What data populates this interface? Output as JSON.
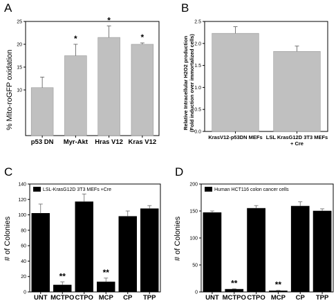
{
  "chart_data": [
    {
      "panel": "A",
      "type": "bar",
      "ylabel": "% Mito-roGFP oxidation",
      "ylim": [
        0,
        25
      ],
      "yticks": [
        10,
        15,
        20,
        25
      ],
      "categories": [
        "p53 DN",
        "Myr-Akt",
        "Hras V12",
        "Kras V12"
      ],
      "values": [
        10.5,
        17.5,
        21.5,
        20.0
      ],
      "errors": [
        2.3,
        2.5,
        2.5,
        0.3
      ],
      "annotations": [
        "",
        "*",
        "*",
        "*"
      ],
      "bar_color": "#c0c0c0"
    },
    {
      "panel": "B",
      "type": "bar",
      "ylabel_line1": "Relative Intracellular H2O2 production",
      "ylabel_line2": "(Fold induction over immortalized cells)",
      "ylim": [
        0,
        2.5
      ],
      "yticks": [
        "0.0",
        "0.5",
        "1.0",
        "1.5",
        "2.0",
        "2.5"
      ],
      "categories": [
        "KrasV12-p53DN MEFs",
        "LSL KrasG12D 3T3 MEFs\n+ Cre"
      ],
      "values": [
        2.23,
        1.82
      ],
      "errors": [
        0.15,
        0.12
      ],
      "bar_color": "#c0c0c0"
    },
    {
      "panel": "C",
      "type": "bar",
      "ylabel": "# of Colonies",
      "legend": "LSL-KrasG12D 3T3 MEFs  +Cre",
      "ylim": [
        0,
        140
      ],
      "yticks": [
        0,
        20,
        40,
        60,
        80,
        100,
        120,
        140
      ],
      "categories": [
        "UNT",
        "MCTPO",
        "CTPO",
        "MCP",
        "CP",
        "TPP"
      ],
      "values": [
        102,
        9,
        117,
        13,
        98,
        108
      ],
      "errors": [
        12,
        4,
        10,
        5,
        7,
        4
      ],
      "annotations": [
        "",
        "**",
        "",
        "**",
        "",
        ""
      ],
      "bar_color": "#000000"
    },
    {
      "panel": "D",
      "type": "bar",
      "ylabel": "# of Colonies",
      "legend": "Human HCT116 colon cancer cells",
      "ylim": [
        0,
        200
      ],
      "yticks": [
        0,
        50,
        100,
        150,
        200
      ],
      "categories": [
        "UNT",
        "MCTPO",
        "CTPO",
        "MCP",
        "CP",
        "TPP"
      ],
      "values": [
        147,
        5,
        155,
        2,
        159,
        150
      ],
      "errors": [
        3,
        1,
        5,
        1,
        8,
        4
      ],
      "annotations": [
        "",
        "**",
        "",
        "**",
        "",
        ""
      ],
      "bar_color": "#000000"
    }
  ]
}
